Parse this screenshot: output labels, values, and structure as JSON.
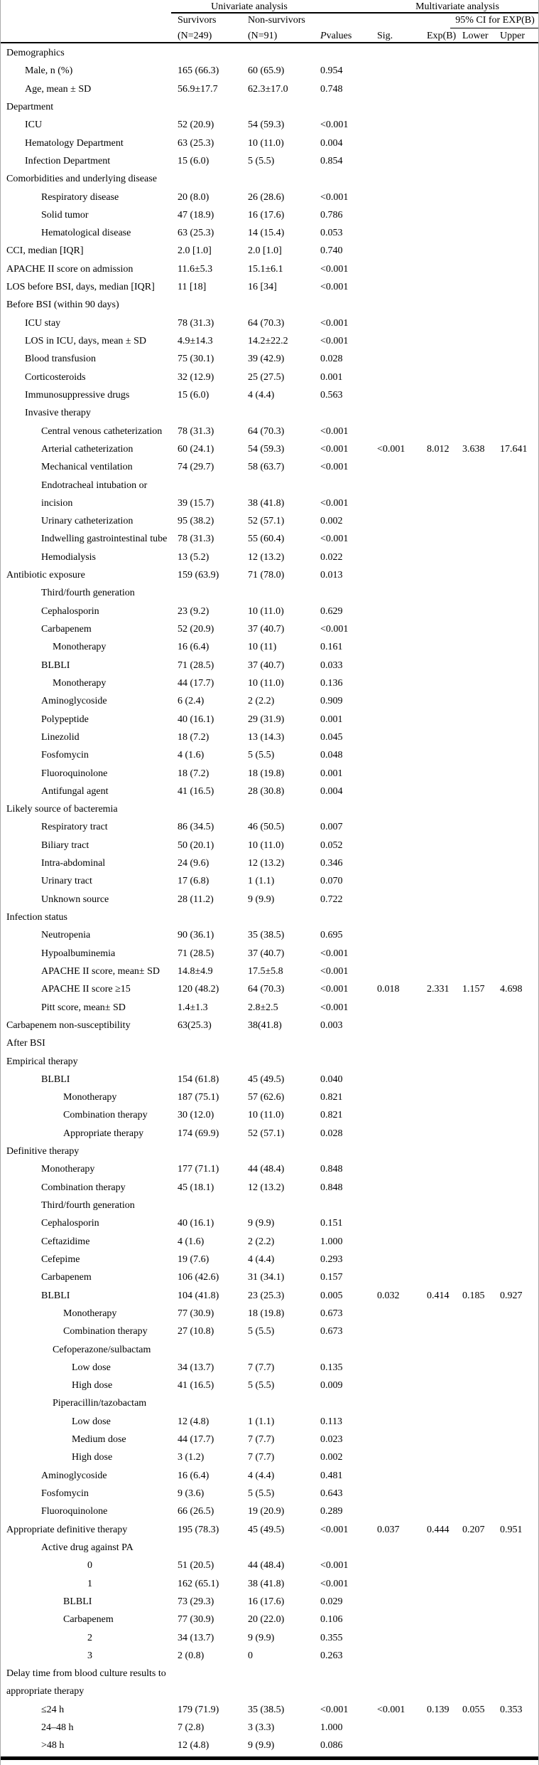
{
  "table": {
    "header": {
      "group_univariate": "Univariate analysis",
      "group_multivariate": "Multivariate analysis",
      "ci_group": "95% CI for EXP(B)",
      "survivors_line1": "Survivors",
      "survivors_line2": "(N=249)",
      "nonsurvivors_line1": "Non-survivors",
      "nonsurvivors_line2": "(N=91)",
      "p_italic": "P",
      "p_rest": " values",
      "sig": "Sig.",
      "exp": "Exp(B)",
      "lower": "Lower",
      "upper": "Upper"
    },
    "rows": [
      [
        "Demographics",
        0
      ],
      [
        "Male, n (%)",
        1,
        "165 (66.3)",
        "60 (65.9)",
        "0.954"
      ],
      [
        "Age, mean ± SD",
        1,
        "56.9±17.7",
        "62.3±17.0",
        "0.748"
      ],
      [
        "Department",
        0
      ],
      [
        "ICU",
        1,
        "52 (20.9)",
        "54 (59.3)",
        "<0.001"
      ],
      [
        "Hematology Department",
        1,
        "63 (25.3)",
        "10 (11.0)",
        "0.004"
      ],
      [
        "Infection Department",
        1,
        "15 (6.0)",
        "5 (5.5)",
        "0.854"
      ],
      [
        "Comorbidities and underlying disease",
        0
      ],
      [
        "Respiratory disease",
        2,
        "20 (8.0)",
        "26 (28.6)",
        "<0.001"
      ],
      [
        "Solid tumor",
        2,
        "47 (18.9)",
        "16 (17.6)",
        "0.786"
      ],
      [
        "Hematological disease",
        2,
        "63 (25.3)",
        "14 (15.4)",
        "0.053"
      ],
      [
        "CCI, median [IQR]",
        0,
        "2.0 [1.0]",
        "2.0 [1.0]",
        "0.740"
      ],
      [
        "APACHE II score on admission",
        0,
        "11.6±5.3",
        "15.1±6.1",
        "<0.001"
      ],
      [
        "LOS before BSI, days, median [IQR]",
        0,
        "11 [18]",
        "16 [34]",
        "<0.001"
      ],
      [
        "Before BSI (within 90 days)",
        0
      ],
      [
        "ICU stay",
        1,
        "78 (31.3)",
        "64 (70.3)",
        "<0.001"
      ],
      [
        "LOS in ICU, days, mean ± SD",
        1,
        "4.9±14.3",
        "14.2±22.2",
        "<0.001"
      ],
      [
        "Blood transfusion",
        1,
        "75 (30.1)",
        "39 (42.9)",
        "0.028"
      ],
      [
        "Corticosteroids",
        1,
        "32 (12.9)",
        "25 (27.5)",
        "0.001"
      ],
      [
        "Immunosuppressive drugs",
        1,
        "15 (6.0)",
        "4 (4.4)",
        "0.563"
      ],
      [
        "Invasive therapy",
        1
      ],
      [
        "Central venous catheterization",
        2,
        "78 (31.3)",
        "64 (70.3)",
        "<0.001"
      ],
      [
        "Arterial catheterization",
        2,
        "60 (24.1)",
        "54 (59.3)",
        "<0.001",
        "<0.001",
        "8.012",
        "3.638",
        "17.641"
      ],
      [
        "Mechanical ventilation",
        2,
        "74 (29.7)",
        "58 (63.7)",
        "<0.001"
      ],
      [
        "Endotracheal intubation or",
        2
      ],
      [
        "incision",
        2,
        "39 (15.7)",
        "38 (41.8)",
        "<0.001"
      ],
      [
        "Urinary catheterization",
        2,
        "95 (38.2)",
        "52 (57.1)",
        "0.002"
      ],
      [
        "Indwelling gastrointestinal tube",
        2,
        "78 (31.3)",
        "55 (60.4)",
        "<0.001"
      ],
      [
        "Hemodialysis",
        2,
        "13 (5.2)",
        "12 (13.2)",
        "0.022"
      ],
      [
        "Antibiotic exposure",
        0,
        "159 (63.9)",
        "71 (78.0)",
        "0.013"
      ],
      [
        "Third/fourth generation",
        2
      ],
      [
        "Cephalosporin",
        2,
        "23 (9.2)",
        "10 (11.0)",
        "0.629"
      ],
      [
        "Carbapenem",
        2,
        "52 (20.9)",
        "37 (40.7)",
        "<0.001"
      ],
      [
        "Monotherapy",
        3,
        "16 (6.4)",
        "10 (11)",
        "0.161"
      ],
      [
        "BLBLI",
        2,
        "71 (28.5)",
        "37 (40.7)",
        "0.033"
      ],
      [
        "Monotherapy",
        3,
        "44 (17.7)",
        "10 (11.0)",
        "0.136"
      ],
      [
        "Aminoglycoside",
        2,
        "6 (2.4)",
        "2 (2.2)",
        "0.909"
      ],
      [
        "Polypeptide",
        2,
        "40 (16.1)",
        "29 (31.9)",
        "0.001"
      ],
      [
        "Linezolid",
        2,
        "18 (7.2)",
        "13 (14.3)",
        "0.045"
      ],
      [
        "Fosfomycin",
        2,
        "4 (1.6)",
        "5 (5.5)",
        "0.048"
      ],
      [
        "Fluoroquinolone",
        2,
        "18 (7.2)",
        "18 (19.8)",
        "0.001"
      ],
      [
        "Antifungal agent",
        2,
        "41 (16.5)",
        "28 (30.8)",
        "0.004"
      ],
      [
        "Likely source of bacteremia",
        0
      ],
      [
        "Respiratory tract",
        2,
        "86 (34.5)",
        "46 (50.5)",
        "0.007"
      ],
      [
        "Biliary tract",
        2,
        "50 (20.1)",
        "10 (11.0)",
        "0.052"
      ],
      [
        "Intra-abdominal",
        2,
        "24 (9.6)",
        "12 (13.2)",
        "0.346"
      ],
      [
        "Urinary tract",
        2,
        "17 (6.8)",
        "1 (1.1)",
        "0.070"
      ],
      [
        "Unknown source",
        2,
        "28 (11.2)",
        "9 (9.9)",
        "0.722"
      ],
      [
        "Infection status",
        0
      ],
      [
        "Neutropenia",
        2,
        "90 (36.1)",
        "35 (38.5)",
        "0.695"
      ],
      [
        "Hypoalbuminemia",
        2,
        "71 (28.5)",
        "37 (40.7)",
        "<0.001"
      ],
      [
        "APACHE II score, mean± SD",
        2,
        "14.8±4.9",
        "17.5±5.8",
        "<0.001"
      ],
      [
        "APACHE II score ≥15",
        2,
        "120 (48.2)",
        "64 (70.3)",
        "<0.001",
        "0.018",
        "2.331",
        "1.157",
        "4.698"
      ],
      [
        "Pitt score, mean± SD",
        2,
        "1.4±1.3",
        "2.8±2.5",
        "<0.001"
      ],
      [
        "Carbapenem non-susceptibility",
        0,
        "63(25.3)",
        "38(41.8)",
        "0.003"
      ],
      [
        "After BSI",
        0
      ],
      [
        "Empirical therapy",
        0
      ],
      [
        "BLBLI",
        2,
        "154 (61.8)",
        "45 (49.5)",
        "0.040"
      ],
      [
        "Monotherapy",
        4,
        "187 (75.1)",
        "57 (62.6)",
        "0.821"
      ],
      [
        "Combination therapy",
        4,
        "30 (12.0)",
        "10 (11.0)",
        "0.821"
      ],
      [
        "Appropriate therapy",
        4,
        "174 (69.9)",
        "52 (57.1)",
        "0.028"
      ],
      [
        "Definitive therapy",
        0
      ],
      [
        "Monotherapy",
        2,
        "177 (71.1)",
        "44 (48.4)",
        "0.848"
      ],
      [
        "Combination therapy",
        2,
        "45 (18.1)",
        "12 (13.2)",
        "0.848"
      ],
      [
        "Third/fourth generation",
        2
      ],
      [
        "Cephalosporin",
        2,
        "40 (16.1)",
        "9 (9.9)",
        "0.151"
      ],
      [
        "Ceftazidime",
        2,
        "4 (1.6)",
        "2 (2.2)",
        "1.000"
      ],
      [
        "Cefepime",
        2,
        "19 (7.6)",
        "4 (4.4)",
        "0.293"
      ],
      [
        "Carbapenem",
        2,
        "106 (42.6)",
        "31 (34.1)",
        "0.157"
      ],
      [
        "BLBLI",
        2,
        "104 (41.8)",
        "23 (25.3)",
        "0.005",
        "0.032",
        "0.414",
        "0.185",
        "0.927"
      ],
      [
        "Monotherapy",
        4,
        "77 (30.9)",
        "18 (19.8)",
        "0.673"
      ],
      [
        "Combination therapy",
        4,
        "27 (10.8)",
        "5 (5.5)",
        "0.673"
      ],
      [
        "Cefoperazone/sulbactam",
        3
      ],
      [
        "Low dose",
        5,
        "34 (13.7)",
        "7 (7.7)",
        "0.135"
      ],
      [
        "High dose",
        5,
        "41 (16.5)",
        "5 (5.5)",
        "0.009"
      ],
      [
        "Piperacillin/tazobactam",
        3
      ],
      [
        "Low dose",
        5,
        "12 (4.8)",
        "1 (1.1)",
        "0.113"
      ],
      [
        "Medium dose",
        5,
        "44 (17.7)",
        "7 (7.7)",
        "0.023"
      ],
      [
        "High dose",
        5,
        "3 (1.2)",
        "7 (7.7)",
        "0.002"
      ],
      [
        "Aminoglycoside",
        2,
        "16 (6.4)",
        "4 (4.4)",
        "0.481"
      ],
      [
        "Fosfomycin",
        2,
        "9 (3.6)",
        "5 (5.5)",
        "0.643"
      ],
      [
        "Fluoroquinolone",
        2,
        "66 (26.5)",
        "19 (20.9)",
        "0.289"
      ],
      [
        "Appropriate definitive therapy",
        0,
        "195 (78.3)",
        "45 (49.5)",
        "<0.001",
        "0.037",
        "0.444",
        "0.207",
        "0.951"
      ],
      [
        "Active drug against PA",
        2
      ],
      [
        "0",
        6,
        "51 (20.5)",
        "44 (48.4)",
        "<0.001"
      ],
      [
        "1",
        6,
        "162 (65.1)",
        "38 (41.8)",
        "<0.001"
      ],
      [
        "BLBLI",
        4,
        "73 (29.3)",
        "16 (17.6)",
        "0.029"
      ],
      [
        "Carbapenem",
        4,
        "77 (30.9)",
        "20 (22.0)",
        "0.106"
      ],
      [
        "2",
        6,
        "34 (13.7)",
        "9 (9.9)",
        "0.355"
      ],
      [
        "3",
        6,
        "2 (0.8)",
        "0",
        "0.263"
      ],
      [
        "Delay time from blood culture results to",
        0
      ],
      [
        "appropriate therapy",
        0
      ],
      [
        "≤24 h",
        2,
        "179 (71.9)",
        "35 (38.5)",
        "<0.001",
        "<0.001",
        "0.139",
        "0.055",
        "0.353"
      ],
      [
        "24–48 h",
        2,
        "7 (2.8)",
        "3 (3.3)",
        "1.000"
      ],
      [
        ">48 h",
        2,
        "12 (4.8)",
        "9 (9.9)",
        "0.086"
      ]
    ]
  }
}
